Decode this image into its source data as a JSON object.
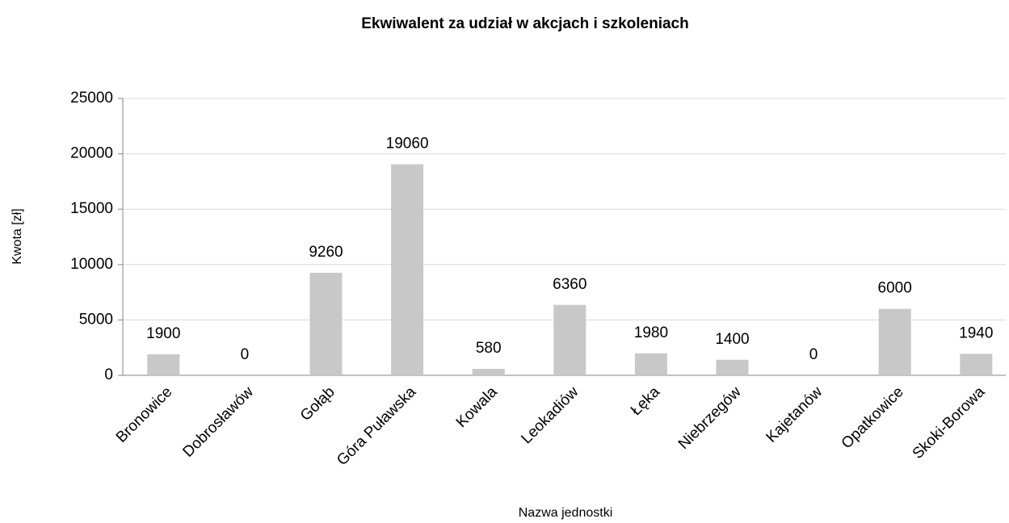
{
  "chart_data": {
    "type": "bar",
    "title": "Ekwiwalent za udział w akcjach i szkoleniach",
    "x_label": "Nazwa jednostki",
    "y_label": "Kwota [zł]",
    "categories": [
      "Bronowice",
      "Dobrosławów",
      "Gołąb",
      "Góra Puławska",
      "Kowala",
      "Leokadiów",
      "Łęka",
      "Niebrzegów",
      "Kajetanów",
      "Opatkowice",
      "Skoki-Borowa"
    ],
    "values": [
      1900,
      0,
      9260,
      19060,
      580,
      6360,
      1980,
      1400,
      0,
      6000,
      1940
    ],
    "color": "#c8c8c8",
    "ylim": [
      0,
      25000
    ],
    "yticks": [
      0,
      5000,
      10000,
      15000,
      20000,
      25000
    ],
    "grid": true
  }
}
